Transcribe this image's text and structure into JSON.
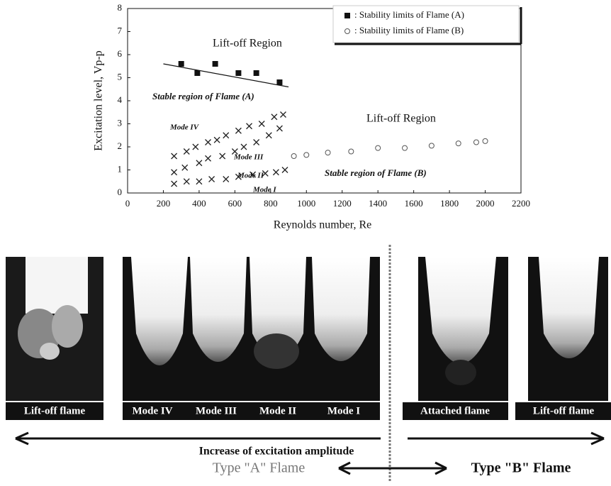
{
  "chart_data": {
    "type": "scatter",
    "xlabel": "Reynolds number, Re",
    "ylabel": "Excitation level, Vp-p",
    "xlim": [
      0,
      2200
    ],
    "xticks": [
      0,
      200,
      400,
      600,
      800,
      1000,
      1200,
      1400,
      1600,
      1800,
      2000,
      2200
    ],
    "ylim": [
      0,
      8
    ],
    "yticks": [
      0,
      1,
      2,
      3,
      4,
      5,
      6,
      7,
      8
    ],
    "grid": false,
    "legend": "upper right",
    "series": [
      {
        "name": ": Stability limits of Flame (A)",
        "color": "#111111",
        "marker": "square",
        "x": [
          300,
          390,
          490,
          620,
          720,
          850
        ],
        "values": [
          5.6,
          5.2,
          5.6,
          5.2,
          5.2,
          4.8
        ]
      },
      {
        "name": ": Stability limits of Flame (B)",
        "color": "#555555",
        "marker": "circle",
        "x": [
          930,
          1000,
          1120,
          1250,
          1400,
          1550,
          1700,
          1850,
          1950,
          2000
        ],
        "values": [
          1.6,
          1.65,
          1.75,
          1.8,
          1.95,
          1.95,
          2.05,
          2.15,
          2.2,
          2.25
        ]
      },
      {
        "color": "#222222",
        "marker": "x",
        "x": [
          260,
          330,
          380,
          450,
          500,
          550,
          620,
          680,
          750,
          820,
          870
        ],
        "values": [
          1.6,
          1.8,
          2.0,
          2.2,
          2.3,
          2.5,
          2.7,
          2.9,
          3.0,
          3.3,
          3.4
        ]
      },
      {
        "color": "#222222",
        "marker": "x",
        "x": [
          260,
          320,
          400,
          450,
          530,
          600,
          650,
          720,
          790,
          850
        ],
        "values": [
          0.9,
          1.1,
          1.3,
          1.5,
          1.6,
          1.8,
          2.0,
          2.2,
          2.5,
          2.8
        ]
      },
      {
        "color": "#222222",
        "marker": "x",
        "x": [
          260,
          330,
          400,
          470,
          550,
          620,
          700,
          770,
          830,
          880
        ],
        "values": [
          0.4,
          0.5,
          0.5,
          0.6,
          0.6,
          0.7,
          0.8,
          0.85,
          0.9,
          1.0
        ]
      }
    ],
    "fit_line": {
      "x": [
        200,
        900
      ],
      "y": [
        5.6,
        4.6
      ]
    },
    "annotations": [
      "Lift-off  Region",
      "Stable region of Flame (A)",
      "Mode IV",
      "Mode III",
      "Mode II",
      "Mode I",
      "Lift-off  Region",
      "Stable region of Flame (B)"
    ]
  },
  "figure": {
    "panel_labels": [
      "Lift-off  flame",
      "Mode IV",
      "Mode III",
      "Mode II",
      "Mode I",
      "Attached flame",
      "Lift-off  flame"
    ],
    "arrow_label": "Increase of excitation  amplitude",
    "type_a": "Type \"A\" Flame",
    "type_b": "Type \"B\" Flame"
  }
}
